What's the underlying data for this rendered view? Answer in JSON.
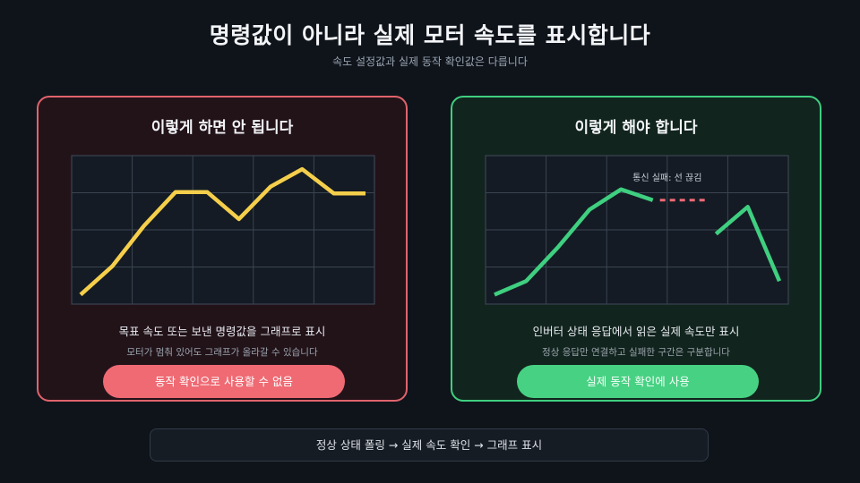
{
  "header": {
    "title": "명령값이 아니라 실제 모터 속도를 표시합니다",
    "subtitle": "속도 설정값과 실제 동작 확인값은 다릅니다"
  },
  "panels": {
    "bad": {
      "title": "이렇게 하면 안 됩니다",
      "description": "목표 속도 또는 보낸 명령값을 그래프로 표시",
      "note": "모터가 멈춰 있어도 그래프가 올라갈 수 있습니다",
      "button": "동작 확인으로 사용할 수 없음",
      "color": "#e0636c"
    },
    "good": {
      "title": "이렇게 해야 합니다",
      "description": "인버터 상태 응답에서 읽은 실제 속도만 표시",
      "note": "정상 응답만 연결하고 실패한 구간은 구분합니다",
      "button": "실제 동작 확인에 사용",
      "annotation": "통신 실패: 선 끊김",
      "color": "#3fcf80"
    }
  },
  "flow": {
    "text": "정상 상태 폴링 → 실제 속도 확인 → 그래프 표시"
  },
  "chart_data": [
    {
      "type": "line",
      "x": [
        0,
        1,
        2,
        3,
        4,
        5,
        6,
        7,
        8,
        9
      ],
      "series": [
        {
          "values": [
            0.07,
            0.28,
            0.58,
            0.83,
            0.83,
            0.63,
            0.87,
            1.0,
            0.82,
            0.82
          ],
          "color": "#f5cf4b"
        }
      ],
      "ylim": [
        0,
        1.1
      ],
      "grid": true
    },
    {
      "type": "line",
      "x": [
        0,
        1,
        2,
        3,
        4,
        5,
        6,
        7,
        8,
        9
      ],
      "series": [
        {
          "values": [
            0.07,
            0.17,
            0.42,
            0.7,
            0.85,
            0.77,
            null,
            0.52,
            0.72,
            0.17
          ],
          "color": "#3fcf80"
        }
      ],
      "gap": {
        "from": 5,
        "to": 7,
        "color": "#f06a76"
      },
      "ylim": [
        0,
        1.1
      ],
      "grid": true
    }
  ]
}
